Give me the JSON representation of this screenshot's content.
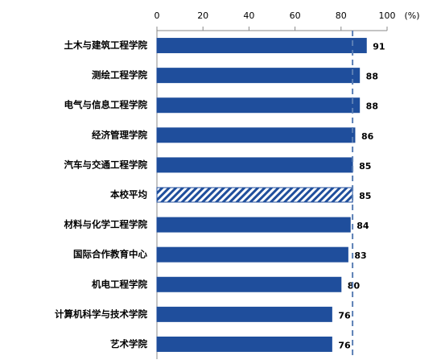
{
  "chart_data": {
    "type": "hbar",
    "x_label": "(%)",
    "categories": [
      "土木与建筑工程学院",
      "测绘工程学院",
      "电气与信息工程学院",
      "经济管理学院",
      "汽车与交通工程学院",
      "本校平均",
      "材料与化学工程学院",
      "国际合作教育中心",
      "机电工程学院",
      "计算机科学与技术学院",
      "艺术学院"
    ],
    "values": [
      91,
      88,
      88,
      86,
      85,
      85,
      84,
      83,
      80,
      76,
      76
    ],
    "color": "#1f4e9c",
    "hatched": [
      5
    ],
    "reference_line": 85,
    "reference_color": "#5b7fb5",
    "xlim": [
      0,
      100
    ],
    "xticks": [
      0,
      20,
      40,
      60,
      80,
      100
    ]
  }
}
